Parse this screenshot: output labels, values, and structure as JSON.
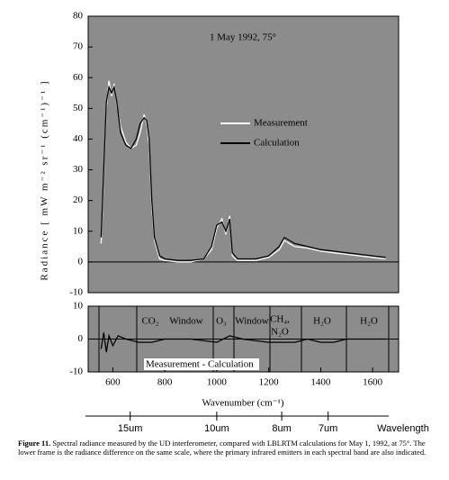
{
  "chart_data": [
    {
      "type": "line",
      "title": "1 May 1992, 75°",
      "ylabel": "Radiance  [ mW m⁻² sr⁻¹ (cm⁻¹)⁻¹ ]",
      "xlim": [
        505,
        1700
      ],
      "ylim": [
        -10,
        80
      ],
      "yticks": [
        -10,
        0,
        10,
        20,
        30,
        40,
        50,
        60,
        70,
        80
      ],
      "x": [
        555,
        565,
        575,
        585,
        595,
        605,
        615,
        630,
        650,
        670,
        690,
        705,
        720,
        730,
        740,
        750,
        760,
        780,
        800,
        850,
        900,
        950,
        980,
        1000,
        1020,
        1035,
        1050,
        1060,
        1080,
        1150,
        1200,
        1240,
        1260,
        1280,
        1300,
        1350,
        1400,
        1450,
        1500,
        1550,
        1600,
        1650
      ],
      "series": [
        {
          "name": "Measurement",
          "color": "#ffffff",
          "values": [
            6,
            28,
            50,
            59,
            54,
            58,
            51,
            44,
            39,
            37,
            38,
            42,
            48,
            45,
            38,
            18,
            7,
            1,
            0.5,
            0,
            0,
            1,
            4,
            11,
            14,
            9,
            15,
            2,
            0.5,
            0.5,
            1.5,
            4,
            7,
            6,
            5,
            4.5,
            3.5,
            3,
            2.5,
            2,
            1.5,
            1
          ]
        },
        {
          "name": "Calculation",
          "color": "#000000",
          "values": [
            8,
            30,
            52,
            57,
            55,
            57,
            52,
            42,
            38,
            37,
            40,
            45,
            47,
            46,
            40,
            20,
            8,
            2,
            1,
            0.5,
            0.5,
            1,
            5,
            12,
            13,
            10,
            14,
            3,
            1,
            1,
            2,
            5,
            8,
            7,
            6,
            5,
            4,
            3.5,
            3,
            2.5,
            2,
            1.5
          ]
        }
      ]
    },
    {
      "type": "line",
      "xlabel": "Wavenumber (cm⁻¹)",
      "xlim": [
        505,
        1700
      ],
      "ylim": [
        -10,
        10
      ],
      "yticks": [
        -10,
        0,
        10
      ],
      "xticks": [
        600,
        800,
        1000,
        1200,
        1400,
        1600
      ],
      "x": [
        555,
        565,
        575,
        585,
        600,
        620,
        650,
        700,
        750,
        800,
        900,
        1000,
        1050,
        1100,
        1200,
        1250,
        1300,
        1350,
        1400,
        1450,
        1500,
        1550,
        1600,
        1650
      ],
      "series": [
        {
          "name": "Measurement - Calculation",
          "color": "#000000",
          "values": [
            -3,
            2,
            -4,
            1,
            -2,
            1,
            0,
            -1,
            -1,
            0,
            0,
            -1,
            1,
            0,
            -1,
            -1,
            -1,
            0,
            -1,
            -1,
            0,
            0,
            0,
            0
          ]
        }
      ],
      "annotations": [
        "CO₂",
        "Window",
        "O₃",
        "Window",
        "CH₄,",
        "N₂O",
        "H₂O",
        "H₂O"
      ],
      "x2ticks": [
        {
          "value": 666.7,
          "label": "15um"
        },
        {
          "value": 1000,
          "label": "10um"
        },
        {
          "value": 1250,
          "label": "8um"
        },
        {
          "value": 1428.6,
          "label": "7um"
        }
      ],
      "x2label": "Wavelength"
    }
  ],
  "caption": {
    "label": "Figure 11.",
    "text": "Spectral radiance measured by the UD interferometer, compared with LBLRTM calculations for May 1, 1992, at 75°.  The lower frame is the radiance difference on the same scale, where the primary infrared emitters in each spectral band are also indicated."
  }
}
